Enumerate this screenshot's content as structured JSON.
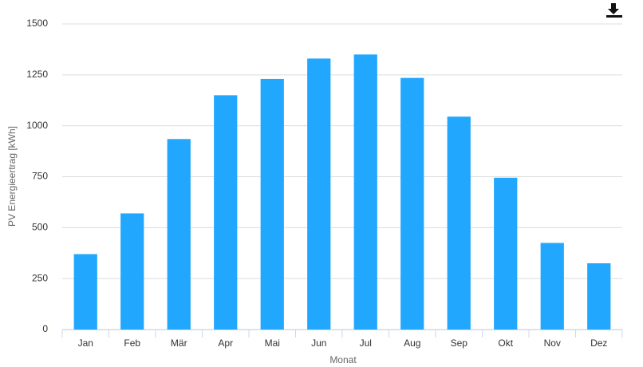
{
  "chart_data": {
    "type": "bar",
    "categories": [
      "Jan",
      "Feb",
      "Mär",
      "Apr",
      "Mai",
      "Jun",
      "Jul",
      "Aug",
      "Sep",
      "Okt",
      "Nov",
      "Dez"
    ],
    "values": [
      370,
      570,
      935,
      1150,
      1230,
      1330,
      1350,
      1235,
      1045,
      745,
      425,
      325
    ],
    "color": "#22a7fe",
    "y_label": "PV Energieertrag [kWh]",
    "x_label": "Monat",
    "ylim": [
      0,
      1500
    ],
    "yticks": [
      0,
      250,
      500,
      750,
      1000,
      1250,
      1500
    ],
    "grid": true
  }
}
